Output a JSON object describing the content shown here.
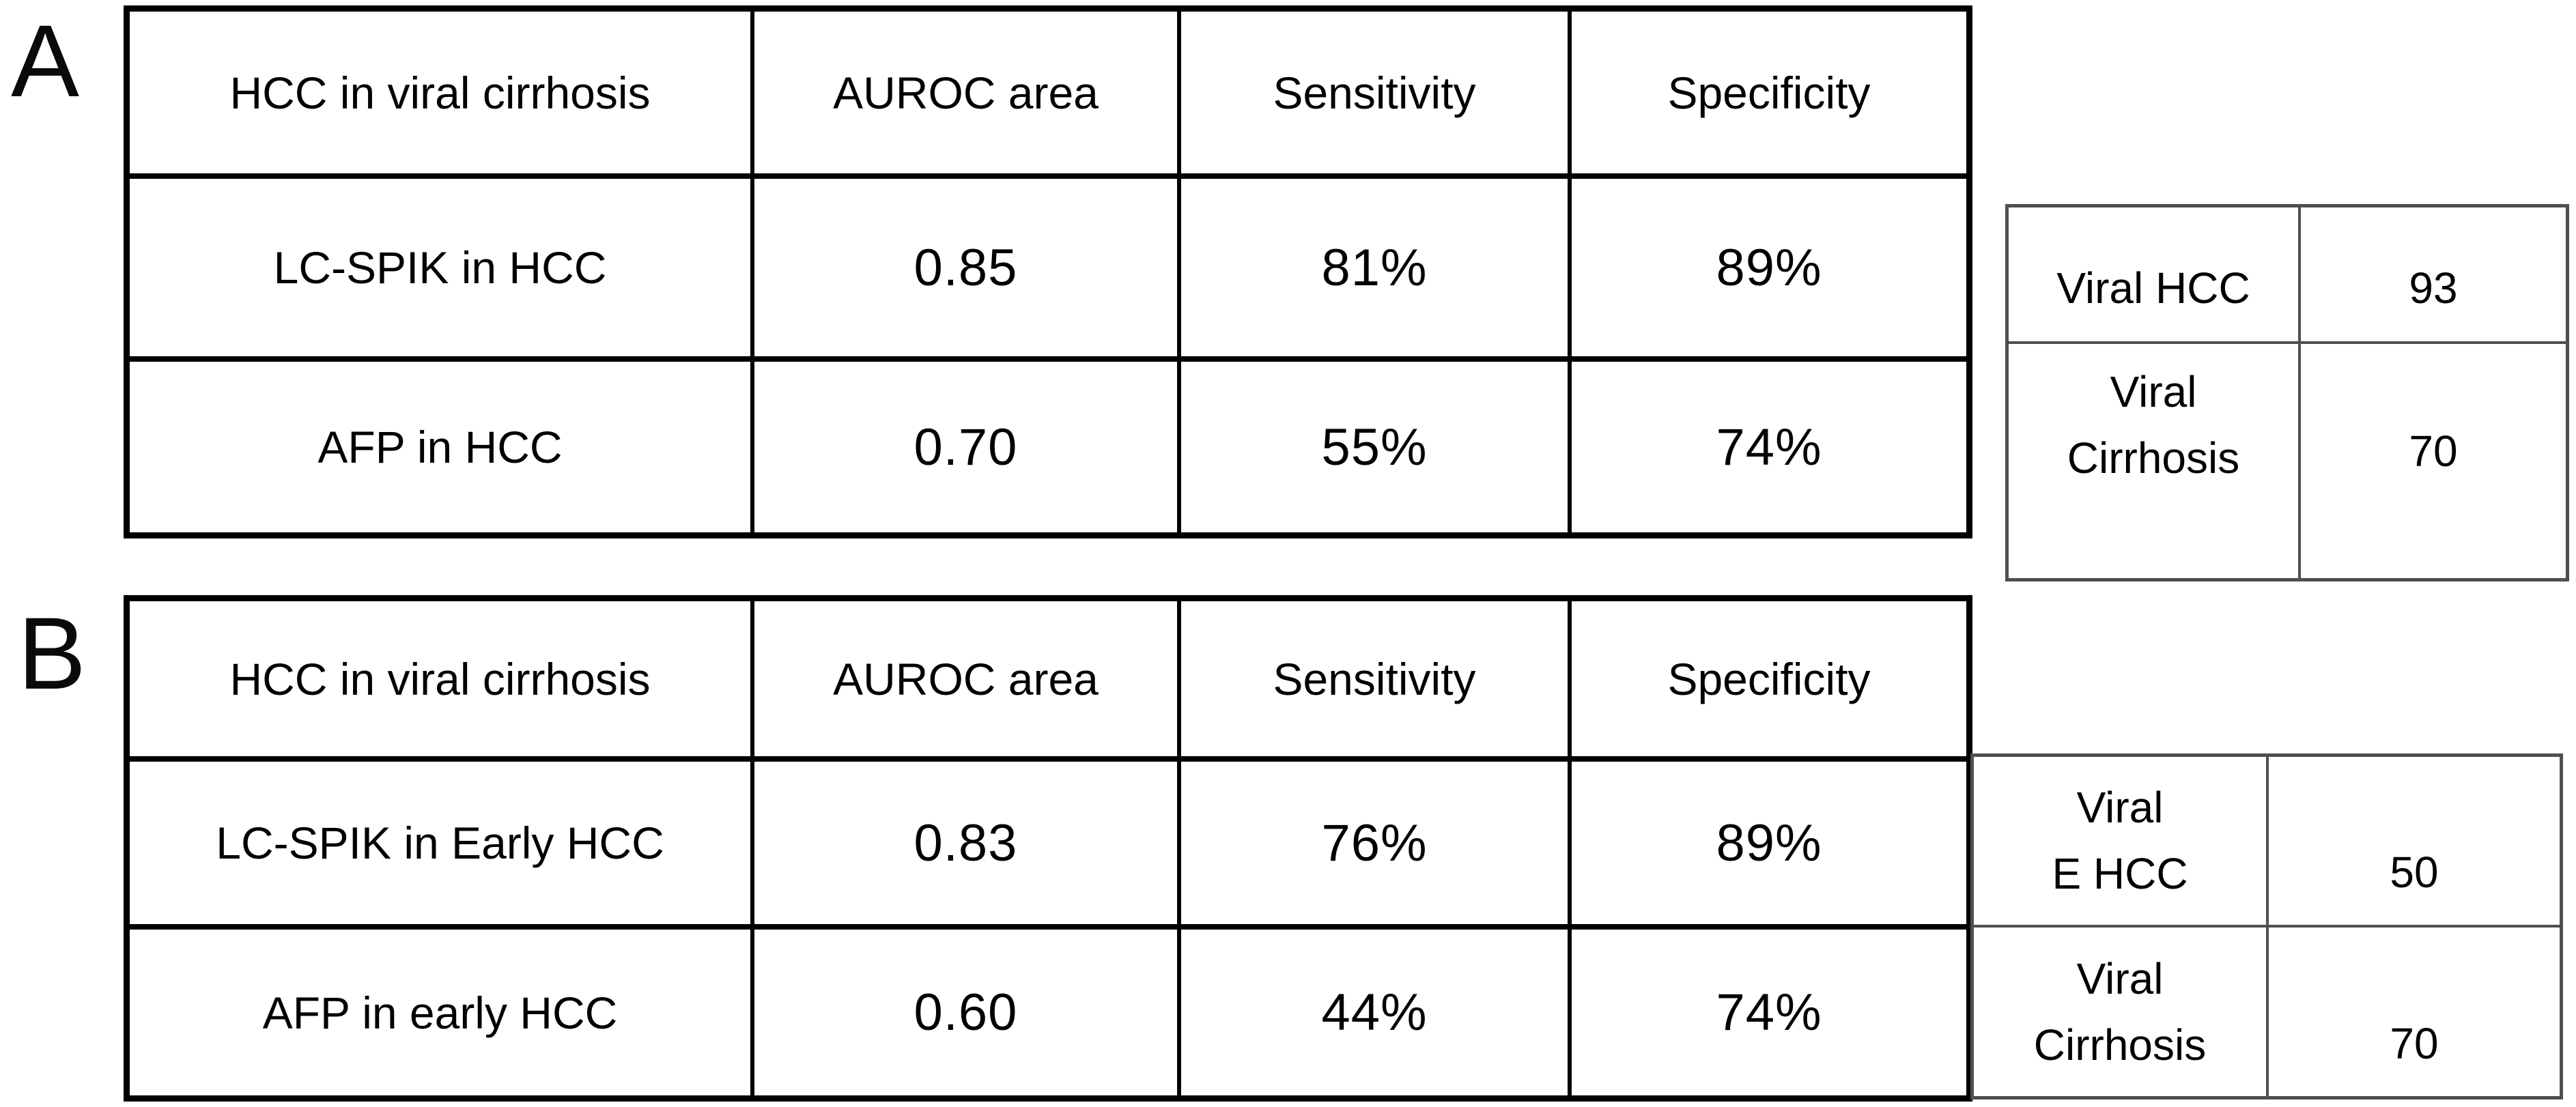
{
  "colors": {
    "background": "#ffffff",
    "main_table_border": "#000000",
    "side_table_border": "#4f4f4f",
    "text": "#000000"
  },
  "panels": [
    {
      "label": "A",
      "table": {
        "headers": [
          "HCC in viral cirrhosis",
          "AUROC area",
          "Sensitivity",
          "Specificity"
        ],
        "rows": [
          {
            "name": "LC-SPIK in HCC",
            "auroc": "0.85",
            "sensitivity": "81%",
            "specificity": "89%"
          },
          {
            "name": "AFP in HCC",
            "auroc": "0.70",
            "sensitivity": "55%",
            "specificity": "74%"
          }
        ]
      },
      "cohort": {
        "rows": [
          {
            "label_lines": [
              "Viral HCC"
            ],
            "count": "93"
          },
          {
            "label_lines": [
              "Viral",
              "Cirrhosis"
            ],
            "count": "70"
          }
        ]
      }
    },
    {
      "label": "B",
      "table": {
        "headers": [
          "HCC in viral cirrhosis",
          "AUROC area",
          "Sensitivity",
          "Specificity"
        ],
        "rows": [
          {
            "name": "LC-SPIK in Early HCC",
            "auroc": "0.83",
            "sensitivity": "76%",
            "specificity": "89%"
          },
          {
            "name": "AFP in early HCC",
            "auroc": "0.60",
            "sensitivity": "44%",
            "specificity": "74%"
          }
        ]
      },
      "cohort": {
        "rows": [
          {
            "label_lines": [
              "Viral",
              "E HCC"
            ],
            "count": "50"
          },
          {
            "label_lines": [
              "Viral",
              "Cirrhosis"
            ],
            "count": "70"
          }
        ]
      }
    }
  ]
}
